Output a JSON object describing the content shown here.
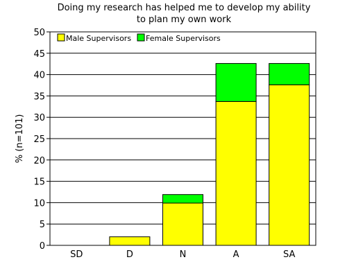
{
  "chart_data": {
    "type": "bar",
    "stacked": true,
    "title_lines": [
      "Doing my research has helped me to develop my ability",
      "to plan my own work"
    ],
    "ylabel": "% (n=101)",
    "xlabel": "",
    "categories": [
      "SD",
      "D",
      "N",
      "A",
      "SA"
    ],
    "yticks": [
      0,
      5,
      10,
      15,
      20,
      25,
      30,
      35,
      40,
      45,
      50
    ],
    "ylim": [
      0,
      50
    ],
    "grid": true,
    "legend_position": "top-left",
    "series": [
      {
        "name": "Male Supervisors",
        "color": "#ffff00",
        "values": [
          0,
          2.0,
          9.9,
          33.7,
          37.6
        ]
      },
      {
        "name": "Female Supervisors",
        "color": "#00ff00",
        "values": [
          0,
          0,
          2.0,
          8.9,
          5.0
        ]
      }
    ]
  }
}
